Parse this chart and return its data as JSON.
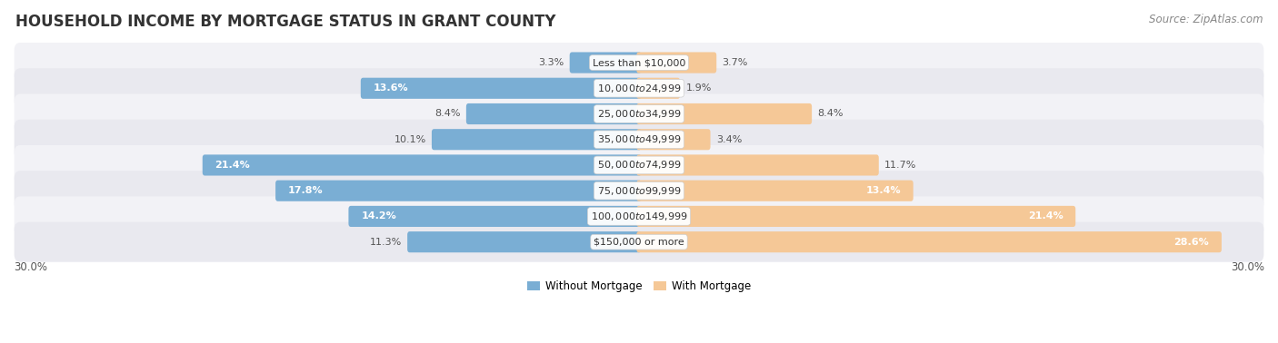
{
  "title": "HOUSEHOLD INCOME BY MORTGAGE STATUS IN GRANT COUNTY",
  "source": "Source: ZipAtlas.com",
  "categories": [
    "Less than $10,000",
    "$10,000 to $24,999",
    "$25,000 to $34,999",
    "$35,000 to $49,999",
    "$50,000 to $74,999",
    "$75,000 to $99,999",
    "$100,000 to $149,999",
    "$150,000 or more"
  ],
  "without_mortgage": [
    3.3,
    13.6,
    8.4,
    10.1,
    21.4,
    17.8,
    14.2,
    11.3
  ],
  "with_mortgage": [
    3.7,
    1.9,
    8.4,
    3.4,
    11.7,
    13.4,
    21.4,
    28.6
  ],
  "without_mortgage_color": "#7aaed4",
  "with_mortgage_color": "#f5c897",
  "row_color_1": "#f2f2f6",
  "row_color_2": "#e9e9ef",
  "axis_limit": 30.0,
  "legend_without": "Without Mortgage",
  "legend_with": "With Mortgage",
  "title_fontsize": 12,
  "source_fontsize": 8.5,
  "label_fontsize": 8,
  "category_fontsize": 8,
  "bar_height": 0.58,
  "fig_width": 14.06,
  "fig_height": 3.78,
  "inside_label_threshold": 12.0
}
